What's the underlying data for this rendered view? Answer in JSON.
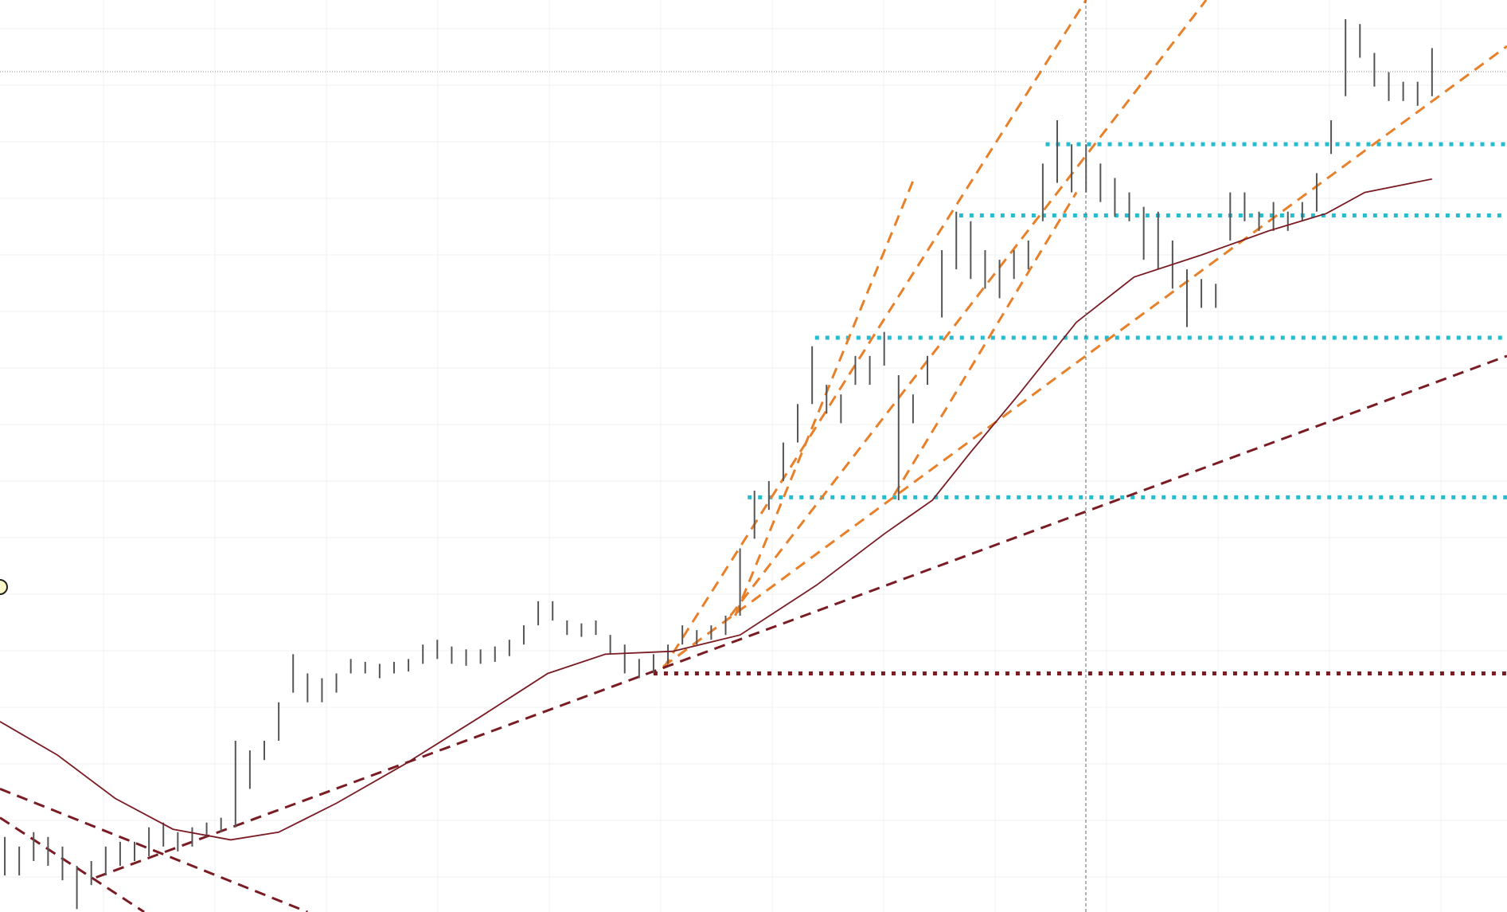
{
  "chart_data": {
    "type": "ohlc",
    "xlim": [
      0,
      1568
    ],
    "ylim": [
      0,
      948
    ],
    "bars": {
      "color": "#555555",
      "x": [
        5,
        20,
        35,
        50,
        65,
        80,
        95,
        110,
        125,
        140,
        155,
        170,
        185,
        200,
        215,
        230,
        245,
        260,
        275,
        290,
        305,
        320,
        335,
        350,
        365,
        380,
        395,
        410,
        425,
        440,
        455,
        470,
        485,
        500,
        515,
        530,
        545,
        560,
        575,
        590,
        605,
        620,
        635,
        650,
        665,
        680,
        695,
        710,
        725,
        740,
        755,
        770,
        785,
        800,
        815,
        830,
        845,
        860,
        875,
        890,
        905,
        920,
        935,
        950,
        965,
        980,
        995,
        1010,
        1025,
        1040,
        1055,
        1070,
        1085,
        1100,
        1115,
        1130,
        1145,
        1160,
        1175,
        1190,
        1205,
        1220,
        1235,
        1250,
        1265,
        1280,
        1295,
        1310,
        1325,
        1340,
        1355,
        1370,
        1385,
        1400,
        1415,
        1430,
        1445,
        1460,
        1475,
        1490
      ],
      "high": [
        78,
        68,
        83,
        78,
        68,
        48,
        53,
        68,
        73,
        73,
        88,
        93,
        83,
        88,
        93,
        98,
        178,
        168,
        178,
        218,
        268,
        248,
        243,
        248,
        263,
        260,
        258,
        260,
        263,
        278,
        283,
        276,
        273,
        273,
        276,
        283,
        298,
        323,
        323,
        303,
        300,
        303,
        288,
        278,
        263,
        268,
        278,
        298,
        293,
        298,
        308,
        378,
        438,
        448,
        488,
        528,
        588,
        548,
        538,
        578,
        578,
        603,
        558,
        538,
        578,
        688,
        728,
        718,
        688,
        678,
        688,
        698,
        778,
        823,
        798,
        798,
        778,
        763,
        748,
        733,
        728,
        698,
        668,
        658,
        653,
        748,
        748,
        728,
        738,
        728,
        738,
        768,
        823,
        928,
        923,
        893,
        873,
        863,
        863,
        898
      ],
      "low": [
        38,
        38,
        53,
        48,
        33,
        3,
        28,
        38,
        48,
        53,
        58,
        68,
        63,
        68,
        78,
        83,
        88,
        128,
        158,
        178,
        228,
        218,
        218,
        228,
        248,
        248,
        243,
        248,
        250,
        258,
        263,
        258,
        256,
        258,
        260,
        266,
        278,
        298,
        303,
        288,
        286,
        288,
        268,
        248,
        243,
        248,
        258,
        278,
        278,
        283,
        288,
        308,
        388,
        418,
        448,
        488,
        528,
        518,
        508,
        548,
        548,
        568,
        428,
        508,
        548,
        618,
        668,
        658,
        648,
        638,
        658,
        668,
        718,
        758,
        748,
        748,
        738,
        723,
        718,
        678,
        668,
        648,
        608,
        628,
        628,
        698,
        718,
        708,
        708,
        708,
        718,
        728,
        788,
        848,
        888,
        858,
        843,
        843,
        838,
        848
      ]
    },
    "ma": {
      "color": "#7a1c24",
      "x": [
        0,
        60,
        120,
        180,
        240,
        290,
        350,
        420,
        500,
        570,
        630,
        700,
        770,
        850,
        920,
        970,
        1010,
        1060,
        1120,
        1180,
        1250,
        1320,
        1380,
        1420,
        1490
      ],
      "values": [
        198,
        163,
        118,
        86,
        75,
        83,
        113,
        153,
        203,
        248,
        268,
        271,
        288,
        340,
        393,
        428,
        478,
        538,
        613,
        660,
        683,
        708,
        726,
        748,
        762
      ]
    },
    "levels": [
      {
        "value": 798,
        "x": 1088,
        "color": "#26bcd0"
      },
      {
        "value": 724,
        "x": 998,
        "color": "#26bcd0"
      },
      {
        "value": 597,
        "x": 848,
        "color": "#26bcd0"
      },
      {
        "value": 431,
        "x": 778,
        "color": "#26bcd0"
      },
      {
        "value": 248,
        "x": 680,
        "color": "#7a1c24"
      }
    ],
    "trendlines": [
      {
        "x1": 765,
        "y1": 308,
        "x2": 950,
        "y2": 760,
        "color": "#e8802a"
      },
      {
        "x1": 760,
        "y1": 308,
        "x2": 1255,
        "y2": 948,
        "color": "#e8802a"
      },
      {
        "x1": 690,
        "y1": 253,
        "x2": 1130,
        "y2": 948,
        "color": "#e8802a"
      },
      {
        "x1": 930,
        "y1": 433,
        "x2": 1120,
        "y2": 748,
        "color": "#e8802a"
      },
      {
        "x1": 690,
        "y1": 255,
        "x2": 1568,
        "y2": 900,
        "color": "#e8802a"
      },
      {
        "x1": 100,
        "y1": 36,
        "x2": 1568,
        "y2": 578,
        "color": "#7a1c24"
      },
      {
        "x1": 0,
        "y1": 128,
        "x2": 320,
        "y2": 0,
        "color": "#7a1c24"
      },
      {
        "x1": 0,
        "y1": 98,
        "x2": 150,
        "y2": 0,
        "color": "#7a1c24"
      }
    ]
  }
}
